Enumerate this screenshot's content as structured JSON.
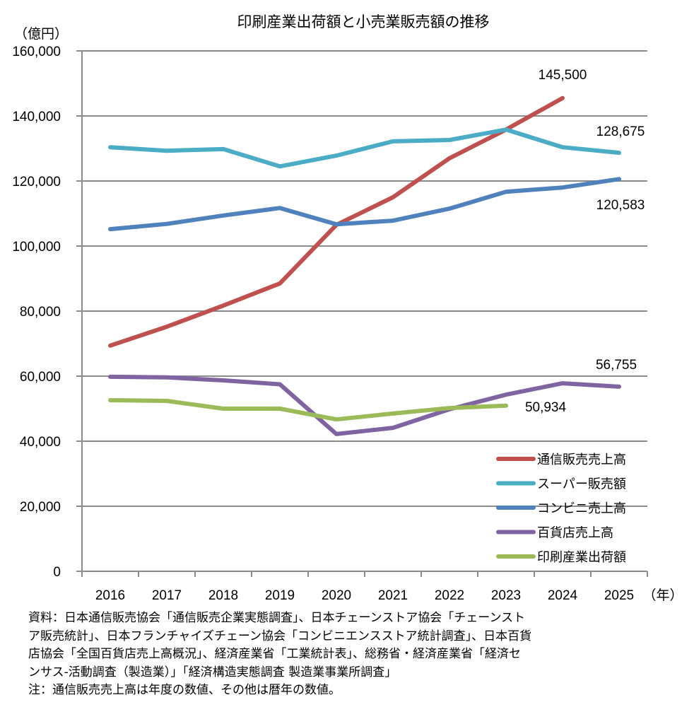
{
  "chart_data": {
    "type": "line",
    "title": "印刷産業出荷額と小売業販売額の推移",
    "ylabel": "（億円）",
    "xlabel": "（年）",
    "ylim": [
      0,
      160000
    ],
    "yticks": [
      0,
      20000,
      40000,
      60000,
      80000,
      100000,
      120000,
      140000,
      160000
    ],
    "ytick_labels": [
      "0",
      "20,000",
      "40,000",
      "60,000",
      "80,000",
      "100,000",
      "120,000",
      "140,000",
      "160,000"
    ],
    "grid": true,
    "categories": [
      "2016",
      "2017",
      "2018",
      "2019",
      "2020",
      "2021",
      "2022",
      "2023",
      "2024",
      "2025"
    ],
    "legend_position": "bottom-right",
    "series": [
      {
        "name": "通信販売売上高",
        "color": "#C0504D",
        "values": [
          69400,
          75200,
          81700,
          88500,
          106500,
          115000,
          127000,
          135800,
          145500,
          null
        ],
        "end_label": "145,500"
      },
      {
        "name": "スーパー販売額",
        "color": "#4BACC6",
        "values": [
          130400,
          129300,
          129800,
          124500,
          127800,
          132200,
          132600,
          135800,
          130400,
          128675
        ],
        "end_label": "128,675"
      },
      {
        "name": "コンビニ売上高",
        "color": "#4F81BD",
        "values": [
          105200,
          106800,
          109400,
          111700,
          106700,
          107800,
          111500,
          116700,
          118000,
          120583
        ],
        "end_label": "120,583"
      },
      {
        "name": "百貨店売上高",
        "color": "#8064A2",
        "values": [
          59800,
          59600,
          58700,
          57500,
          42200,
          44100,
          49800,
          54300,
          57800,
          56755
        ],
        "end_label": "56,755"
      },
      {
        "name": "印刷産業出荷額",
        "color": "#9BBB59",
        "values": [
          52600,
          52400,
          50000,
          50000,
          46700,
          48500,
          50200,
          50934,
          null,
          null
        ],
        "end_label": "50,934"
      }
    ]
  },
  "notes": [
    "資料：日本通信販売協会「通信販売企業実態調査」、日本チェーンストア協会「チェーンスト",
    "ア販売統計」、日本フランチャイズチェーン協会「コンビニエンスストア統計調査」、日本百貨",
    "店協会「全国百貨店売上高概況」、経済産業省「工業統計表」、総務省・経済産業省「経済セ",
    "ンサス-活動調査（製造業）」「経済構造実態調査 製造業事業所調査」",
    "注：通信販売売上高は年度の数値、その他は暦年の数値。"
  ]
}
